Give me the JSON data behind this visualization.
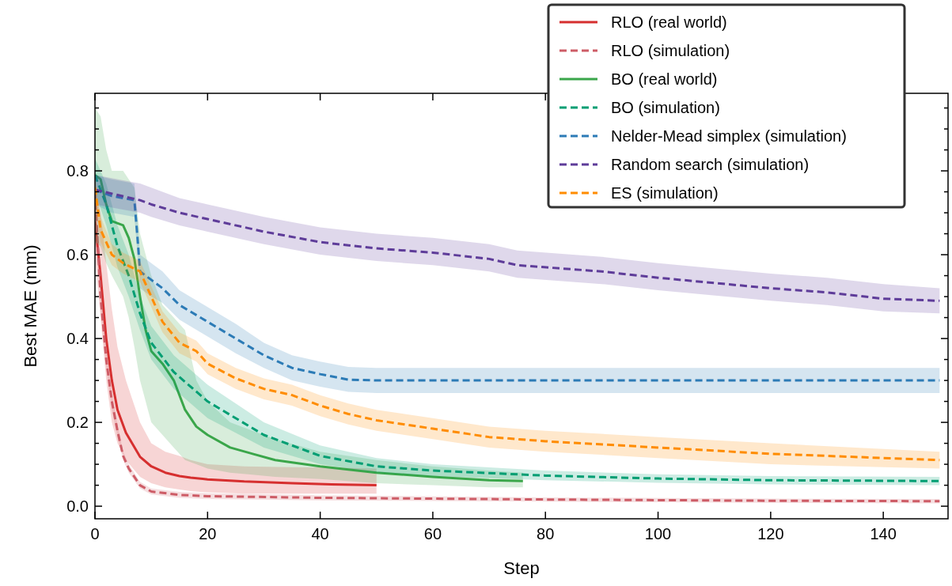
{
  "chart_data": {
    "type": "line",
    "xlabel": "Step",
    "ylabel": "Best MAE (mm)",
    "xlim": [
      0,
      151.5
    ],
    "ylim": [
      -0.03,
      0.985
    ],
    "xticks": [
      0,
      20,
      40,
      60,
      80,
      100,
      120,
      140
    ],
    "yticks": [
      {
        "value": 0,
        "label": "0.0"
      },
      {
        "value": 0.05,
        "label": null
      },
      {
        "value": 0.1,
        "label": null
      },
      {
        "value": 0.15,
        "label": null
      },
      {
        "value": 0.2,
        "label": "0.2"
      },
      {
        "value": 0.25,
        "label": null
      },
      {
        "value": 0.3,
        "label": null
      },
      {
        "value": 0.35,
        "label": null
      },
      {
        "value": 0.4,
        "label": "0.4"
      },
      {
        "value": 0.45,
        "label": null
      },
      {
        "value": 0.5,
        "label": null
      },
      {
        "value": 0.55,
        "label": null
      },
      {
        "value": 0.6,
        "label": "0.6"
      },
      {
        "value": 0.65,
        "label": null
      },
      {
        "value": 0.7,
        "label": null
      },
      {
        "value": 0.75,
        "label": null
      },
      {
        "value": 0.8,
        "label": "0.8"
      },
      {
        "value": 0.85,
        "label": null
      },
      {
        "value": 0.9,
        "label": null
      },
      {
        "value": 0.95,
        "label": null
      }
    ],
    "grid": false,
    "legend": "top right",
    "marker": "none",
    "series": [
      {
        "name": "RLO (real world)",
        "color": "#d62f2f",
        "line_style": "solid",
        "x": [
          0,
          1,
          2,
          3,
          4,
          5.5,
          8,
          10,
          12.5,
          15,
          17,
          20,
          26.5,
          35,
          42,
          50
        ],
        "values": [
          0.68,
          0.55,
          0.4,
          0.3,
          0.23,
          0.175,
          0.118,
          0.095,
          0.08,
          0.072,
          0.068,
          0.064,
          0.059,
          0.055,
          0.052,
          0.05
        ],
        "lower": [
          0.6,
          0.45,
          0.3,
          0.2,
          0.15,
          0.11,
          0.07,
          0.055,
          0.045,
          0.04,
          0.036,
          0.033,
          0.03,
          0.03,
          0.03,
          0.03
        ],
        "upper": [
          0.75,
          0.7,
          0.58,
          0.47,
          0.38,
          0.3,
          0.2,
          0.15,
          0.13,
          0.12,
          0.11,
          0.1,
          0.095,
          0.093,
          0.092,
          0.09
        ]
      },
      {
        "name": "RLO (simulation)",
        "color": "#cd5c66",
        "line_style": "dashed",
        "x": [
          0,
          1,
          2,
          3,
          4,
          5,
          6,
          8,
          10,
          15,
          20,
          40,
          80,
          120,
          150
        ],
        "values": [
          0.75,
          0.5,
          0.35,
          0.25,
          0.18,
          0.12,
          0.09,
          0.05,
          0.035,
          0.027,
          0.024,
          0.02,
          0.016,
          0.013,
          0.012
        ],
        "lower": [
          0.72,
          0.47,
          0.33,
          0.23,
          0.165,
          0.11,
          0.08,
          0.042,
          0.028,
          0.02,
          0.017,
          0.014,
          0.011,
          0.008,
          0.007
        ],
        "upper": [
          0.78,
          0.53,
          0.37,
          0.27,
          0.195,
          0.13,
          0.1,
          0.058,
          0.042,
          0.034,
          0.031,
          0.026,
          0.021,
          0.018,
          0.017
        ]
      },
      {
        "name": "BO (real world)",
        "color": "#3aa64a",
        "line_style": "solid",
        "x": [
          0,
          1,
          2,
          3,
          5,
          6,
          7,
          8,
          9,
          10,
          12,
          14,
          16,
          18,
          20,
          24,
          28,
          32,
          40,
          50,
          60,
          70,
          76
        ],
        "values": [
          0.79,
          0.78,
          0.72,
          0.68,
          0.67,
          0.64,
          0.59,
          0.5,
          0.42,
          0.37,
          0.34,
          0.3,
          0.23,
          0.19,
          0.17,
          0.14,
          0.125,
          0.11,
          0.095,
          0.08,
          0.07,
          0.062,
          0.06
        ],
        "lower": [
          0.63,
          0.62,
          0.58,
          0.55,
          0.5,
          0.45,
          0.38,
          0.3,
          0.25,
          0.2,
          0.17,
          0.14,
          0.11,
          0.1,
          0.09,
          0.08,
          0.075,
          0.07,
          0.065,
          0.055,
          0.05,
          0.045,
          0.045
        ],
        "upper": [
          0.95,
          0.93,
          0.85,
          0.8,
          0.8,
          0.78,
          0.76,
          0.65,
          0.6,
          0.55,
          0.48,
          0.45,
          0.42,
          0.3,
          0.25,
          0.2,
          0.18,
          0.16,
          0.13,
          0.11,
          0.095,
          0.085,
          0.08
        ]
      },
      {
        "name": "BO (simulation)",
        "color": "#009e73",
        "line_style": "dashed",
        "x": [
          0,
          2,
          4,
          6,
          8,
          10,
          14,
          20,
          30,
          40,
          50,
          60,
          80,
          100,
          120,
          150
        ],
        "values": [
          0.79,
          0.72,
          0.62,
          0.55,
          0.46,
          0.39,
          0.32,
          0.25,
          0.17,
          0.12,
          0.095,
          0.085,
          0.073,
          0.066,
          0.062,
          0.06
        ],
        "lower": [
          0.75,
          0.67,
          0.57,
          0.5,
          0.42,
          0.35,
          0.28,
          0.21,
          0.14,
          0.1,
          0.08,
          0.072,
          0.062,
          0.056,
          0.052,
          0.05
        ],
        "upper": [
          0.83,
          0.77,
          0.67,
          0.6,
          0.5,
          0.43,
          0.36,
          0.29,
          0.2,
          0.145,
          0.115,
          0.1,
          0.085,
          0.076,
          0.072,
          0.07
        ]
      },
      {
        "name": "Nelder-Mead simplex (simulation)",
        "color": "#2c7bb6",
        "line_style": "dashed",
        "x": [
          0,
          3,
          7,
          7.5,
          8,
          10,
          12,
          15,
          20,
          25,
          30,
          35,
          40,
          45,
          50,
          100,
          150
        ],
        "values": [
          0.755,
          0.74,
          0.73,
          0.65,
          0.56,
          0.54,
          0.52,
          0.48,
          0.44,
          0.4,
          0.36,
          0.33,
          0.315,
          0.302,
          0.3,
          0.3,
          0.3
        ],
        "lower": [
          0.72,
          0.7,
          0.69,
          0.61,
          0.52,
          0.5,
          0.485,
          0.445,
          0.405,
          0.365,
          0.33,
          0.3,
          0.285,
          0.273,
          0.27,
          0.27,
          0.27
        ],
        "upper": [
          0.79,
          0.78,
          0.77,
          0.69,
          0.6,
          0.58,
          0.56,
          0.515,
          0.475,
          0.435,
          0.39,
          0.36,
          0.345,
          0.332,
          0.33,
          0.33,
          0.33
        ]
      },
      {
        "name": "Random search (simulation)",
        "color": "#5e3c99",
        "line_style": "dashed",
        "x": [
          0,
          8,
          10,
          15,
          20,
          30,
          40,
          50,
          60,
          70,
          75,
          90,
          100,
          120,
          130,
          140,
          150
        ],
        "values": [
          0.755,
          0.73,
          0.72,
          0.7,
          0.685,
          0.655,
          0.63,
          0.615,
          0.605,
          0.59,
          0.575,
          0.56,
          0.545,
          0.52,
          0.51,
          0.495,
          0.49
        ],
        "lower": [
          0.72,
          0.7,
          0.69,
          0.67,
          0.655,
          0.625,
          0.6,
          0.585,
          0.575,
          0.56,
          0.545,
          0.53,
          0.515,
          0.49,
          0.48,
          0.465,
          0.46
        ],
        "upper": [
          0.79,
          0.77,
          0.76,
          0.735,
          0.72,
          0.69,
          0.665,
          0.65,
          0.64,
          0.625,
          0.61,
          0.595,
          0.58,
          0.555,
          0.545,
          0.53,
          0.52
        ]
      },
      {
        "name": "ES (simulation)",
        "color": "#ff8c00",
        "line_style": "dashed",
        "x": [
          0,
          1,
          3,
          5,
          8,
          10,
          12,
          15,
          18,
          20,
          25,
          30,
          35,
          40,
          45,
          50,
          60,
          70,
          80,
          100,
          120,
          150
        ],
        "values": [
          0.76,
          0.66,
          0.6,
          0.58,
          0.56,
          0.5,
          0.44,
          0.39,
          0.37,
          0.34,
          0.305,
          0.28,
          0.265,
          0.24,
          0.22,
          0.205,
          0.185,
          0.165,
          0.155,
          0.14,
          0.125,
          0.11
        ],
        "lower": [
          0.73,
          0.63,
          0.575,
          0.555,
          0.535,
          0.475,
          0.415,
          0.365,
          0.345,
          0.315,
          0.28,
          0.255,
          0.24,
          0.215,
          0.195,
          0.18,
          0.16,
          0.14,
          0.13,
          0.115,
          0.1,
          0.09
        ],
        "upper": [
          0.79,
          0.69,
          0.625,
          0.605,
          0.585,
          0.525,
          0.465,
          0.415,
          0.395,
          0.365,
          0.33,
          0.305,
          0.29,
          0.265,
          0.245,
          0.23,
          0.21,
          0.19,
          0.18,
          0.165,
          0.15,
          0.13
        ]
      }
    ]
  }
}
